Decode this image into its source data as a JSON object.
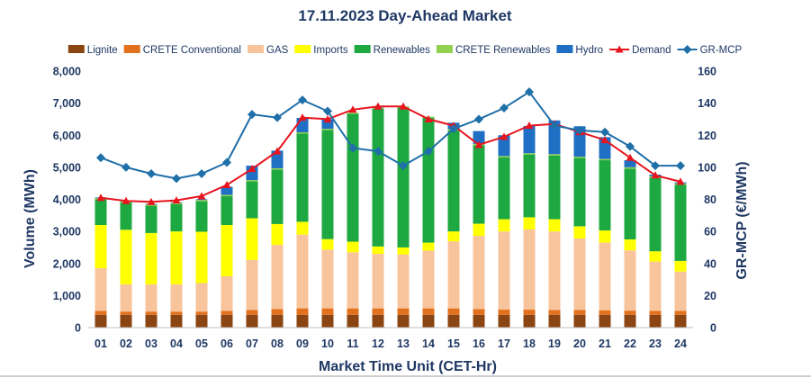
{
  "chart_data": {
    "type": "bar",
    "title": "17.11.2023  Day-Ahead Market",
    "xlabel": "Market Time Unit (CET-Hr)",
    "ylabel": "Volume (MWh)",
    "y2label": "GR-MCP (€/MWh)",
    "ylim": [
      0,
      8000
    ],
    "y2lim": [
      0,
      160
    ],
    "yticks": [
      "0",
      "1,000",
      "2,000",
      "3,000",
      "4,000",
      "5,000",
      "6,000",
      "7,000",
      "8,000"
    ],
    "y2ticks": [
      "0",
      "20",
      "40",
      "60",
      "80",
      "100",
      "120",
      "140",
      "160"
    ],
    "categories": [
      "01",
      "02",
      "03",
      "04",
      "05",
      "06",
      "07",
      "08",
      "09",
      "10",
      "11",
      "12",
      "13",
      "14",
      "15",
      "16",
      "17",
      "18",
      "19",
      "20",
      "21",
      "22",
      "23",
      "24"
    ],
    "stacked_series": [
      {
        "name": "Lignite",
        "color": "#8b4513",
        "values": [
          400,
          400,
          400,
          400,
          400,
          400,
          400,
          400,
          400,
          400,
          400,
          400,
          400,
          400,
          400,
          400,
          400,
          400,
          400,
          400,
          400,
          400,
          400,
          400
        ]
      },
      {
        "name": "CRETE Conventional",
        "color": "#e2711d",
        "values": [
          120,
          100,
          100,
          100,
          100,
          120,
          150,
          180,
          200,
          200,
          200,
          200,
          200,
          200,
          200,
          180,
          160,
          160,
          150,
          150,
          140,
          130,
          120,
          120
        ]
      },
      {
        "name": "GAS",
        "color": "#f8c49c",
        "values": [
          1330,
          850,
          850,
          850,
          890,
          1080,
          1560,
          2000,
          2300,
          1830,
          1750,
          1700,
          1680,
          1800,
          2090,
          2280,
          2440,
          2500,
          2450,
          2230,
          2110,
          1880,
          1540,
          1230
        ]
      },
      {
        "name": "Imports",
        "color": "#ffff00",
        "values": [
          1350,
          1700,
          1600,
          1650,
          1600,
          1600,
          1300,
          650,
          400,
          330,
          330,
          230,
          220,
          250,
          310,
          380,
          380,
          380,
          380,
          380,
          380,
          340,
          320,
          330
        ]
      },
      {
        "name": "Renewables",
        "color": "#1ea842",
        "values": [
          800,
          850,
          850,
          850,
          950,
          900,
          1150,
          1700,
          2750,
          3400,
          3990,
          4300,
          4370,
          3890,
          3150,
          2450,
          1930,
          1960,
          1990,
          2130,
          2190,
          2210,
          2300,
          2380
        ]
      },
      {
        "name": "CRETE Renewables",
        "color": "#92d050",
        "values": [
          40,
          40,
          40,
          40,
          40,
          40,
          40,
          40,
          40,
          40,
          30,
          30,
          30,
          40,
          40,
          40,
          40,
          40,
          40,
          40,
          40,
          40,
          40,
          40
        ]
      },
      {
        "name": "Hydro",
        "color": "#1f6fc5",
        "values": [
          20,
          20,
          20,
          20,
          20,
          250,
          450,
          550,
          450,
          300,
          0,
          20,
          0,
          0,
          200,
          400,
          650,
          850,
          1050,
          950,
          680,
          220,
          50,
          30
        ]
      }
    ],
    "line_series": [
      {
        "name": "Demand",
        "color": "#e8141e",
        "marker": "triangle",
        "axis": "left",
        "values": [
          4050,
          3950,
          3920,
          3970,
          4100,
          4450,
          4950,
          5500,
          6550,
          6500,
          6800,
          6900,
          6900,
          6500,
          6300,
          5700,
          5950,
          6300,
          6350,
          6100,
          5850,
          5300,
          4750,
          4550
        ]
      },
      {
        "name": "GR-MCP",
        "color": "#1f6fa8",
        "marker": "diamond",
        "axis": "right",
        "values": [
          106,
          100,
          96,
          93,
          96,
          103,
          133,
          131,
          142,
          135,
          112,
          110,
          101,
          110,
          124,
          130,
          137,
          147,
          126,
          123,
          122,
          113,
          101,
          101
        ]
      }
    ],
    "legend": [
      {
        "name": "Lignite",
        "kind": "bar",
        "color": "#8b4513"
      },
      {
        "name": "CRETE Conventional",
        "kind": "bar",
        "color": "#e2711d"
      },
      {
        "name": "GAS",
        "kind": "bar",
        "color": "#f8c49c"
      },
      {
        "name": "Imports",
        "kind": "bar",
        "color": "#ffff00"
      },
      {
        "name": "Renewables",
        "kind": "bar",
        "color": "#1ea842"
      },
      {
        "name": "CRETE Renewables",
        "kind": "bar",
        "color": "#92d050"
      },
      {
        "name": "Hydro",
        "kind": "bar",
        "color": "#1f6fc5"
      },
      {
        "name": "Demand",
        "kind": "triangle",
        "color": "#e8141e"
      },
      {
        "name": "GR-MCP",
        "kind": "diamond",
        "color": "#1f6fa8"
      }
    ],
    "legend_position": "top"
  }
}
